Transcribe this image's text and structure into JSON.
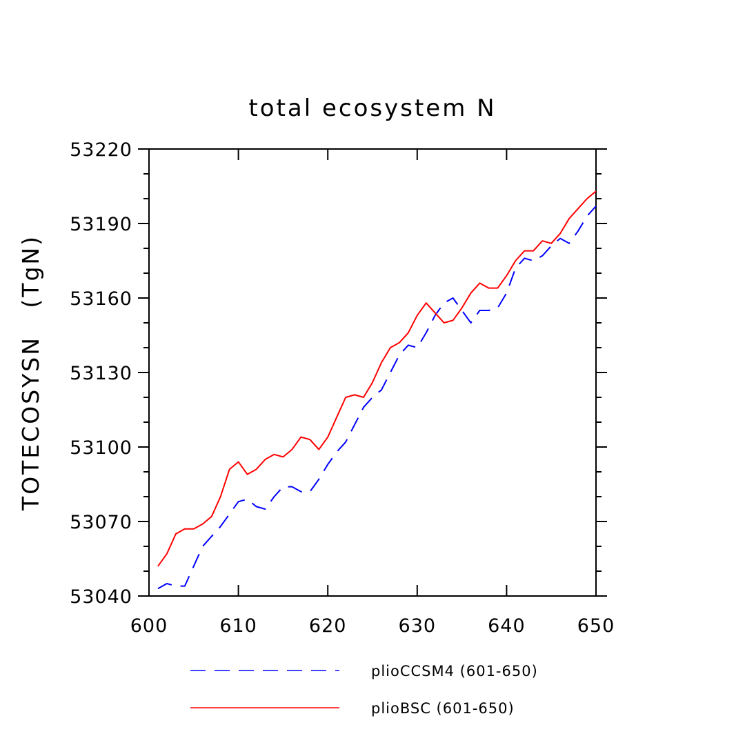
{
  "chart_data": {
    "type": "line",
    "title": "total ecosystem N",
    "xlabel": "",
    "ylabel": "TOTECOSYSN   (TgN)",
    "xlim": [
      600,
      650
    ],
    "ylim": [
      53040,
      53220
    ],
    "xticks": [
      600,
      610,
      620,
      630,
      640,
      650
    ],
    "yticks": [
      53040,
      53070,
      53100,
      53130,
      53160,
      53190,
      53220
    ],
    "grid": false,
    "legend_position": "bottom",
    "x": [
      601,
      602,
      603,
      604,
      605,
      606,
      607,
      608,
      609,
      610,
      611,
      612,
      613,
      614,
      615,
      616,
      617,
      618,
      619,
      620,
      621,
      622,
      623,
      624,
      625,
      626,
      627,
      628,
      629,
      630,
      631,
      632,
      633,
      634,
      635,
      636,
      637,
      638,
      639,
      640,
      641,
      642,
      643,
      644,
      645,
      646,
      647,
      648,
      649,
      650
    ],
    "series": [
      {
        "name": "plioCCSM4 (601-650)",
        "color": "#0000ff",
        "style": "dashed",
        "values": [
          53043,
          53045,
          53044,
          53044,
          53052,
          53060,
          53064,
          53068,
          53073,
          53078,
          53079,
          53076,
          53075,
          53080,
          53084,
          53084,
          53082,
          53082,
          53087,
          53093,
          53098,
          53102,
          53109,
          53116,
          53120,
          53123,
          53130,
          53137,
          53141,
          53140,
          53146,
          53153,
          53158,
          53160,
          53155,
          53150,
          53155,
          53155,
          53156,
          53162,
          53172,
          53176,
          53175,
          53177,
          53181,
          53184,
          53182,
          53187,
          53193,
          53197
        ]
      },
      {
        "name": "plioBSC (601-650)",
        "color": "#ff0000",
        "style": "solid",
        "values": [
          53052,
          53057,
          53065,
          53067,
          53067,
          53069,
          53072,
          53080,
          53091,
          53094,
          53089,
          53091,
          53095,
          53097,
          53096,
          53099,
          53104,
          53103,
          53099,
          53104,
          53112,
          53120,
          53121,
          53120,
          53126,
          53134,
          53140,
          53142,
          53146,
          53153,
          53158,
          53154,
          53150,
          53151,
          53156,
          53162,
          53166,
          53164,
          53164,
          53169,
          53175,
          53179,
          53179,
          53183,
          53182,
          53186,
          53192,
          53196,
          53200,
          53203
        ]
      }
    ]
  }
}
